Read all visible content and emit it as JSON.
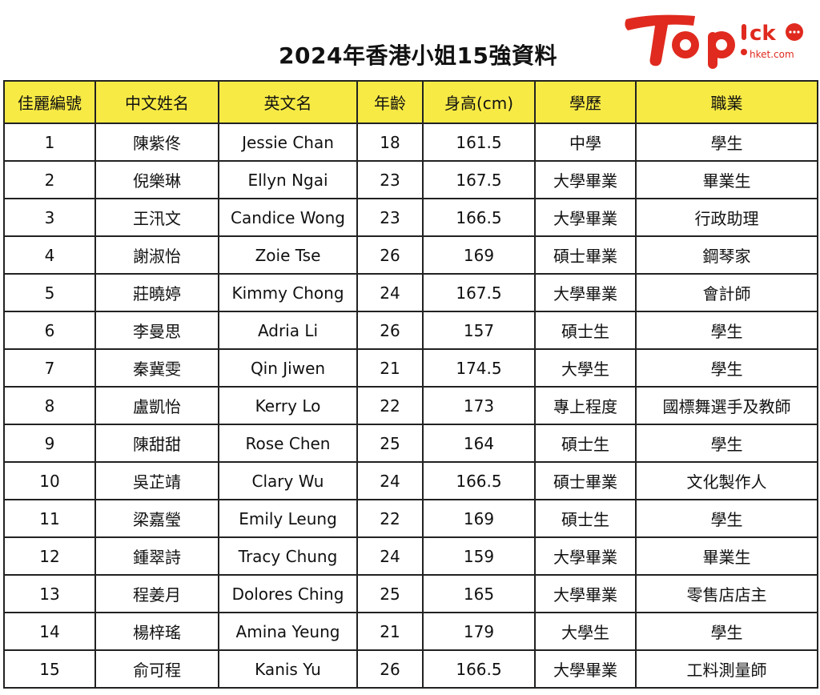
{
  "title": "2024年香港小姐15強資料",
  "logo": {
    "text": "TOPick",
    "subtext": "hket.com",
    "color": "#e02a1f"
  },
  "colors": {
    "header_bg": "#f7ea45",
    "border": "#222222"
  },
  "table": {
    "headers": [
      "佳麗編號",
      "中文姓名",
      "英文名",
      "年齡",
      "身高(cm)",
      "學歷",
      "職業"
    ],
    "rows": [
      [
        "1",
        "陳紫佟",
        "Jessie Chan",
        "18",
        "161.5",
        "中學",
        "學生"
      ],
      [
        "2",
        "倪樂琳",
        "Ellyn Ngai",
        "23",
        "167.5",
        "大學畢業",
        "畢業生"
      ],
      [
        "3",
        "王汛文",
        "Candice Wong",
        "23",
        "166.5",
        "大學畢業",
        "行政助理"
      ],
      [
        "4",
        "謝淑怡",
        "Zoie Tse",
        "26",
        "169",
        "碩士畢業",
        "鋼琴家"
      ],
      [
        "5",
        "莊曉婷",
        "Kimmy Chong",
        "24",
        "167.5",
        "大學畢業",
        "會計師"
      ],
      [
        "6",
        "李曼思",
        "Adria Li",
        "26",
        "157",
        "碩士生",
        "學生"
      ],
      [
        "7",
        "秦冀雯",
        "Qin Jiwen",
        "21",
        "174.5",
        "大學生",
        "學生"
      ],
      [
        "8",
        "盧凱怡",
        "Kerry Lo",
        "22",
        "173",
        "專上程度",
        "國標舞選手及教師"
      ],
      [
        "9",
        "陳甜甜",
        "Rose Chen",
        "25",
        "164",
        "碩士生",
        "學生"
      ],
      [
        "10",
        "吳芷靖",
        "Clary Wu",
        "24",
        "166.5",
        "碩士畢業",
        "文化製作人"
      ],
      [
        "11",
        "梁嘉瑩",
        "Emily Leung",
        "22",
        "169",
        "碩士生",
        "學生"
      ],
      [
        "12",
        "鍾翠詩",
        "Tracy Chung",
        "24",
        "159",
        "大學畢業",
        "畢業生"
      ],
      [
        "13",
        "程姜月",
        "Dolores Ching",
        "25",
        "165",
        "大學畢業",
        "零售店店主"
      ],
      [
        "14",
        "楊梓瑤",
        "Amina Yeung",
        "21",
        "179",
        "大學生",
        "學生"
      ],
      [
        "15",
        "俞可程",
        "Kanis Yu",
        "26",
        "166.5",
        "大學畢業",
        "工料測量師"
      ]
    ]
  }
}
